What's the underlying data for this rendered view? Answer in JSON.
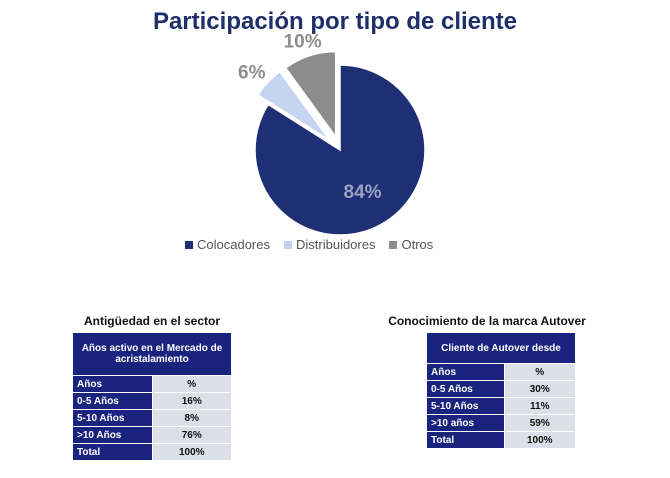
{
  "chart_data": {
    "type": "pie",
    "title": "Participación por tipo de cliente",
    "categories": [
      "Colocadores",
      "Distribuidores",
      "Otros"
    ],
    "values": [
      84,
      6,
      10
    ],
    "labels": [
      "84%",
      "6%",
      "10%"
    ],
    "exploded": [
      false,
      true,
      true
    ],
    "colors": [
      "#1f2f75",
      "#c5d4f0",
      "#8c8c8c"
    ],
    "legend_position": "bottom"
  },
  "tables": {
    "left": {
      "title": "Antigüedad en el sector",
      "header": "Años activo en el Mercado de acristalamiento",
      "columns": [
        "Años",
        "%"
      ],
      "rows": [
        [
          "0-5 Años",
          "16%"
        ],
        [
          "5-10 Años",
          "8%"
        ],
        [
          ">10 Años",
          "76%"
        ],
        [
          "Total",
          "100%"
        ]
      ]
    },
    "right": {
      "title": "Conocimiento de la marca Autover",
      "header": "Cliente de Autover desde",
      "columns": [
        "Años",
        "%"
      ],
      "rows": [
        [
          "0-5 Años",
          "30%"
        ],
        [
          "5-10 Años",
          "11%"
        ],
        [
          ">10 años",
          "59%"
        ],
        [
          "Total",
          "100%"
        ]
      ]
    }
  }
}
